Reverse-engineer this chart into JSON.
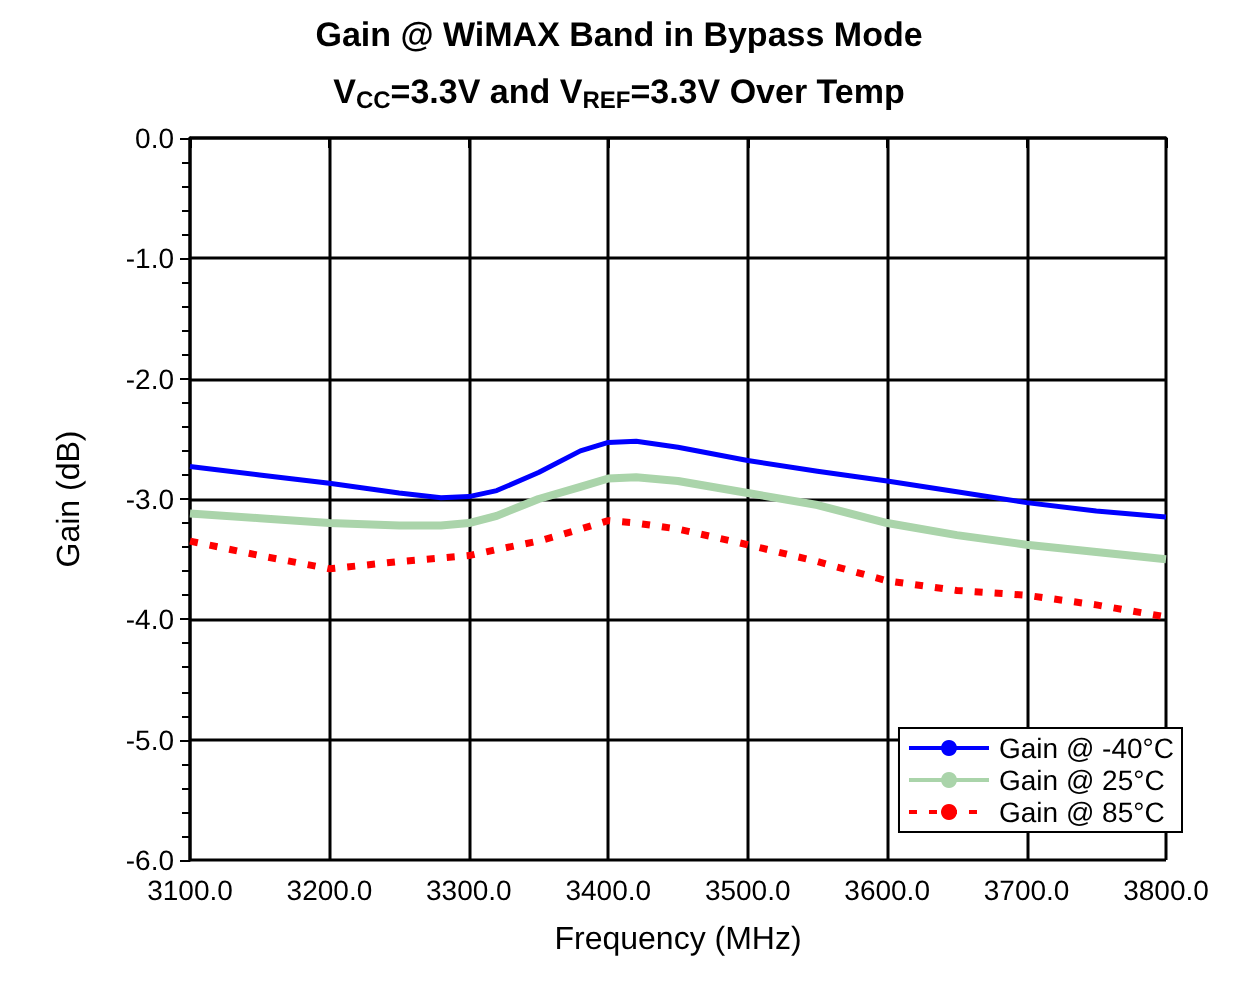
{
  "chart_data": {
    "type": "line",
    "title": "Gain @ WiMAX Band in Bypass Mode",
    "subtitle": "V$_{CC}$=3.3V and V$_{REF}$=3.3V Over Temp",
    "xlabel": "Frequency (MHz)",
    "ylabel": "Gain (dB)",
    "x": [
      3100,
      3150,
      3200,
      3250,
      3280,
      3300,
      3320,
      3350,
      3380,
      3400,
      3420,
      3450,
      3500,
      3550,
      3600,
      3650,
      3700,
      3750,
      3800
    ],
    "series": [
      {
        "name": "Gain @ -40°C",
        "color": "#0000ff",
        "line_style": "solid",
        "values": [
          -2.73,
          -2.8,
          -2.87,
          -2.95,
          -2.99,
          -2.98,
          -2.93,
          -2.78,
          -2.6,
          -2.53,
          -2.52,
          -2.57,
          -2.68,
          -2.77,
          -2.85,
          -2.94,
          -3.03,
          -3.1,
          -3.15
        ]
      },
      {
        "name": "Gain @ 25°C",
        "color": "#aad4aa",
        "line_style": "solid",
        "values": [
          -3.12,
          -3.16,
          -3.2,
          -3.22,
          -3.22,
          -3.2,
          -3.14,
          -3.0,
          -2.9,
          -2.83,
          -2.82,
          -2.85,
          -2.95,
          -3.05,
          -3.2,
          -3.3,
          -3.38,
          -3.44,
          -3.5
        ]
      },
      {
        "name": "Gain @ 85°C",
        "color": "#ff0000",
        "line_style": "dashed",
        "values": [
          -3.35,
          -3.47,
          -3.58,
          -3.52,
          -3.49,
          -3.47,
          -3.42,
          -3.35,
          -3.25,
          -3.18,
          -3.2,
          -3.25,
          -3.38,
          -3.52,
          -3.68,
          -3.76,
          -3.8,
          -3.88,
          -3.98
        ]
      }
    ],
    "xlim": [
      3100,
      3800
    ],
    "xticks": [
      {
        "value": 3100,
        "label": "3100.0"
      },
      {
        "value": 3200,
        "label": "3200.0"
      },
      {
        "value": 3300,
        "label": "3300.0"
      },
      {
        "value": 3400,
        "label": "3400.0"
      },
      {
        "value": 3500,
        "label": "3500.0"
      },
      {
        "value": 3600,
        "label": "3600.0"
      },
      {
        "value": 3700,
        "label": "3700.0"
      },
      {
        "value": 3800,
        "label": "3800.0"
      }
    ],
    "ylim": [
      -6,
      0
    ],
    "yticks": [
      {
        "value": -6,
        "label": "-6.0"
      },
      {
        "value": -5,
        "label": "-5.0"
      },
      {
        "value": -4,
        "label": "-4.0"
      },
      {
        "value": -3,
        "label": "-3.0"
      },
      {
        "value": -2,
        "label": "-2.0"
      },
      {
        "value": -1,
        "label": "-1.0"
      },
      {
        "value": 0,
        "label": "0.0"
      }
    ],
    "grid": true,
    "legend": "bottom right",
    "marker": "none"
  }
}
